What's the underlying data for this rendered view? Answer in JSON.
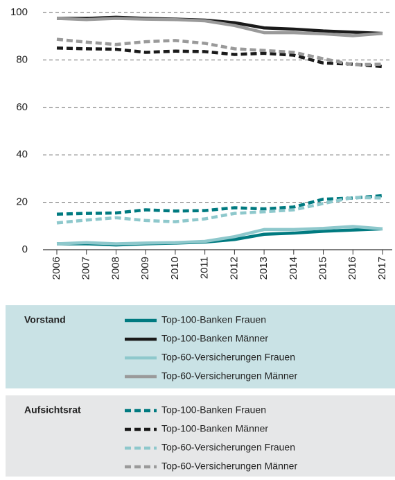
{
  "chart_data": {
    "type": "line",
    "categories": [
      "2006",
      "2007",
      "2008",
      "2009",
      "2010",
      "2011",
      "2012",
      "2013",
      "2014",
      "2015",
      "2016",
      "2017"
    ],
    "ylim": [
      0,
      100
    ],
    "yticks": [
      0,
      20,
      40,
      60,
      80,
      100
    ],
    "grid": true,
    "series": [
      {
        "name": "Top-100-Banken Frauen",
        "group": "Vorstand",
        "color": "#007a80",
        "dashed": false,
        "values": [
          2.5,
          2.5,
          2.0,
          2.5,
          2.8,
          3.2,
          4.3,
          6.5,
          7.0,
          7.8,
          8.3,
          8.8
        ]
      },
      {
        "name": "Top-100-Banken Männer",
        "group": "Vorstand",
        "color": "#1a1a1a",
        "dashed": false,
        "values": [
          97.5,
          97.5,
          98,
          97.5,
          97.2,
          96.8,
          95.7,
          93.5,
          93,
          92.2,
          91.7,
          91.2
        ]
      },
      {
        "name": "Top-60-Versicherungen Frauen",
        "group": "Vorstand",
        "color": "#8ec8cc",
        "dashed": false,
        "values": [
          2.5,
          3.0,
          2.5,
          2.8,
          3.0,
          3.5,
          5.5,
          8.5,
          8.5,
          9.0,
          9.8,
          8.8
        ]
      },
      {
        "name": "Top-60-Versicherungen Männer",
        "group": "Vorstand",
        "color": "#9a9a9a",
        "dashed": false,
        "values": [
          97.5,
          97,
          97.5,
          97.2,
          97,
          96.5,
          94.5,
          91.5,
          91.5,
          91,
          90.2,
          91.2
        ]
      },
      {
        "name": "Top-100-Banken Frauen",
        "group": "Aufsichtsrat",
        "color": "#007a80",
        "dashed": true,
        "values": [
          15,
          15.3,
          15.5,
          16.8,
          16.3,
          16.5,
          17.7,
          17.2,
          18,
          21.3,
          21.8,
          22.8
        ]
      },
      {
        "name": "Top-100-Banken Männer",
        "group": "Aufsichtsrat",
        "color": "#1a1a1a",
        "dashed": true,
        "values": [
          85,
          84.7,
          84.5,
          83.2,
          83.7,
          83.5,
          82.3,
          82.8,
          82,
          78.7,
          78.2,
          77.2
        ]
      },
      {
        "name": "Top-60-Versicherungen Frauen",
        "group": "Aufsichtsrat",
        "color": "#8ec8cc",
        "dashed": true,
        "values": [
          11.3,
          12.5,
          13.5,
          12.3,
          11.8,
          13,
          15.3,
          16,
          16.8,
          19.5,
          22,
          21.8
        ]
      },
      {
        "name": "Top-60-Versicherungen Männer",
        "group": "Aufsichtsrat",
        "color": "#9a9a9a",
        "dashed": true,
        "values": [
          88.7,
          87.5,
          86.5,
          87.7,
          88.2,
          87,
          84.7,
          84,
          83.2,
          80.5,
          78,
          78.2
        ]
      }
    ]
  }
}
